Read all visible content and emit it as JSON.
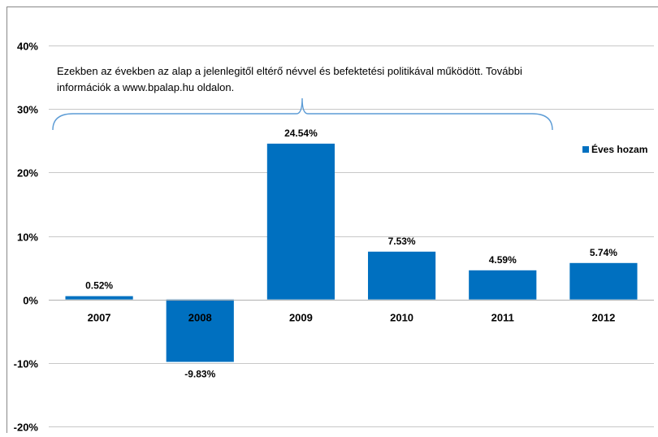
{
  "chart_data": {
    "type": "bar",
    "categories": [
      "2007",
      "2008",
      "2009",
      "2010",
      "2011",
      "2012"
    ],
    "series": [
      {
        "name": "Éves hozam",
        "values": [
          0.52,
          -9.83,
          24.54,
          7.53,
          4.59,
          5.74
        ],
        "labels": [
          "0.52%",
          "-9.83%",
          "24.54%",
          "7.53%",
          "4.59%",
          "5.74%"
        ],
        "color": "#0070C0"
      }
    ],
    "ylim": [
      -20,
      40
    ],
    "yticks": [
      40,
      30,
      20,
      10,
      0,
      -10,
      -20
    ],
    "ytick_labels": [
      "40%",
      "30%",
      "20%",
      "10%",
      "0%",
      "-10%",
      "-20%"
    ],
    "grid": true,
    "legend": "right",
    "annotation": {
      "line1": "Ezekben az években az alap a jelenlegitől eltérő névvel és befektetési politikával működött. További",
      "line2": "információk a www.bpalap.hu oldalon."
    }
  }
}
